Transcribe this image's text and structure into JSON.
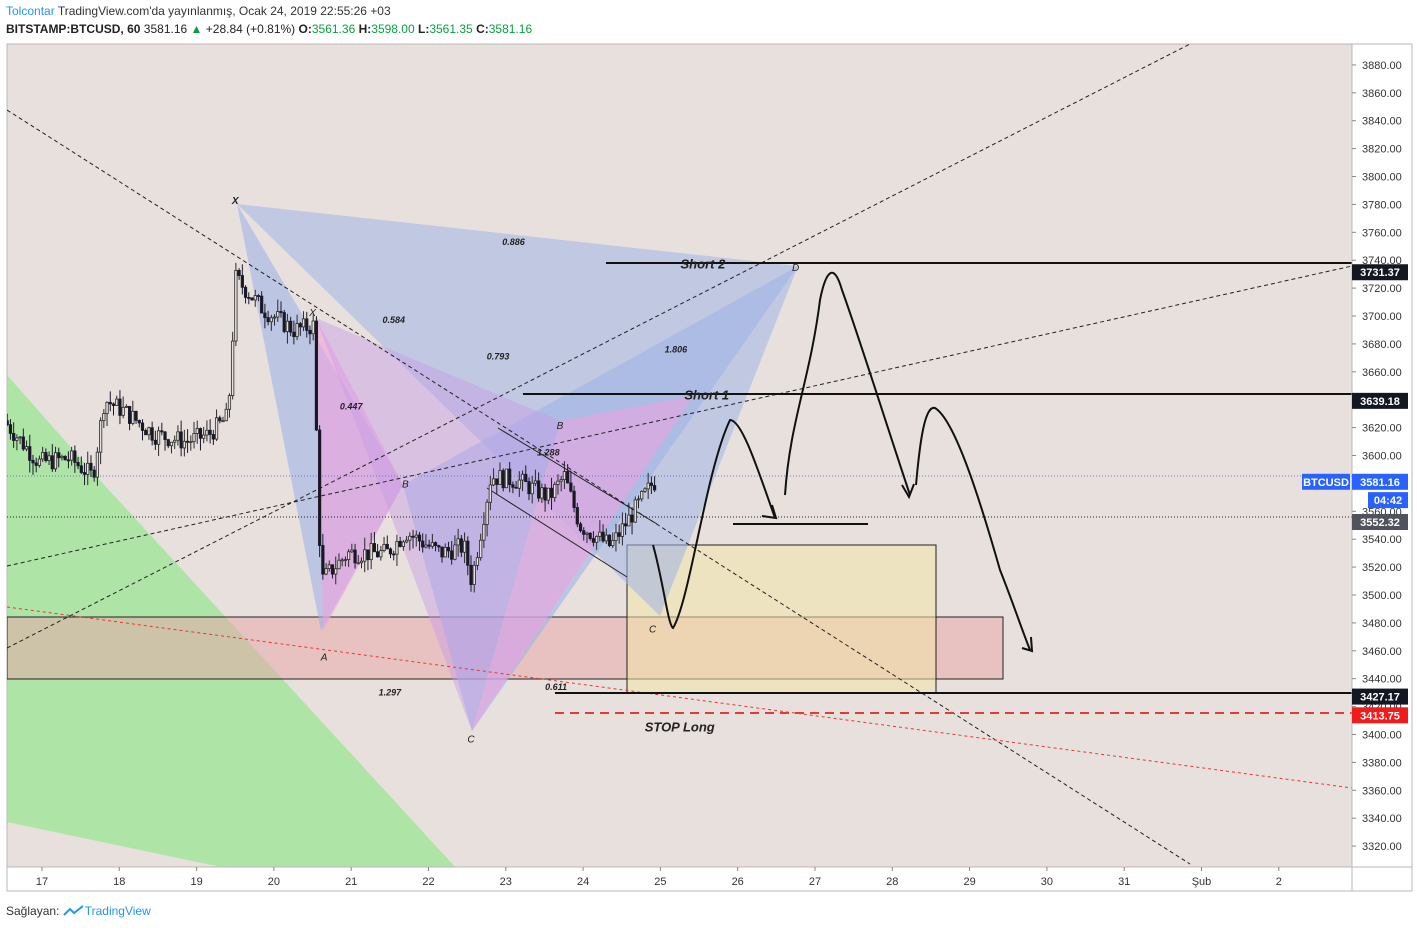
{
  "header": {
    "author": "Tolcontar",
    "published": "TradingView.com'da yayınlanmış, Ocak 24, 2019 22:55:26 +03",
    "symbol": "BITSTAMP:BTCUSD, 60",
    "last": "3581.16",
    "change_arrow": "▲",
    "change": "+28.84 (+0.81%)",
    "o_label": "O:",
    "o": "3561.36",
    "h_label": "H:",
    "h": "3598.00",
    "l_label": "L:",
    "l": "3561.35",
    "c_label": "C:",
    "c": "3581.16"
  },
  "footer": {
    "prefix": "Sağlayan:",
    "brand": "TradingView",
    "logo_icon": "tradingview-logo-icon"
  },
  "chart_data": {
    "type": "candlestick",
    "ylim": [
      3305,
      3895
    ],
    "y_ticks": [
      3320,
      3340,
      3360,
      3380,
      3400,
      3420,
      3440,
      3460,
      3480,
      3500,
      3520,
      3540,
      3560,
      3580,
      3600,
      3620,
      3640,
      3660,
      3680,
      3700,
      3720,
      3740,
      3760,
      3780,
      3800,
      3820,
      3840,
      3860,
      3880
    ],
    "x_ticks": [
      "17",
      "18",
      "19",
      "20",
      "21",
      "22",
      "23",
      "24",
      "25",
      "26",
      "27",
      "28",
      "29",
      "30",
      "31",
      "Şub",
      "2"
    ],
    "xlim_days": [
      16.55,
      33.95
    ],
    "price_tags": [
      {
        "label": "3731.37",
        "value": 3731.37,
        "kind": "black"
      },
      {
        "label": "3639.18",
        "value": 3639.18,
        "kind": "black"
      },
      {
        "label": "3581.16",
        "value": 3581.16,
        "kind": "blue"
      },
      {
        "label": "04:42",
        "value": 3568,
        "kind": "blue"
      },
      {
        "label": "3552.32",
        "value": 3552.32,
        "kind": "gray"
      },
      {
        "label": "3427.17",
        "value": 3427.17,
        "kind": "black"
      },
      {
        "label": "3413.75",
        "value": 3413.75,
        "kind": "red"
      }
    ],
    "symbol_badge": "BTCUSD",
    "annotations": [
      {
        "text": "Short 2",
        "x": 25.55,
        "y": 3737
      },
      {
        "text": "Short 1",
        "x": 25.6,
        "y": 3643
      },
      {
        "text": "STOP Long",
        "x": 25.25,
        "y": 3405
      }
    ],
    "pattern_labels": [
      {
        "text": "X",
        "x": 19.5,
        "y": 3783
      },
      {
        "text": "X",
        "x": 20.5,
        "y": 3703
      },
      {
        "text": "A",
        "x": 20.65,
        "y": 3456
      },
      {
        "text": "B",
        "x": 21.7,
        "y": 3580
      },
      {
        "text": "C",
        "x": 22.55,
        "y": 3397
      },
      {
        "text": "B",
        "x": 23.7,
        "y": 3622
      },
      {
        "text": "C",
        "x": 24.9,
        "y": 3476
      },
      {
        "text": "D",
        "x": 26.75,
        "y": 3735
      }
    ],
    "ratio_labels": [
      {
        "text": "0.886",
        "x": 23.1,
        "y": 3753
      },
      {
        "text": "0.584",
        "x": 21.55,
        "y": 3697
      },
      {
        "text": "0.793",
        "x": 22.9,
        "y": 3671
      },
      {
        "text": "0.447",
        "x": 21.0,
        "y": 3635
      },
      {
        "text": "1.806",
        "x": 25.2,
        "y": 3676
      },
      {
        "text": "1.288",
        "x": 23.55,
        "y": 3602
      },
      {
        "text": "1.297",
        "x": 21.5,
        "y": 3430
      },
      {
        "text": "0.611",
        "x": 23.65,
        "y": 3434
      }
    ],
    "ohlc_anchors": [
      {
        "x": 16.55,
        "y": 3625
      },
      {
        "x": 17.0,
        "y": 3595
      },
      {
        "x": 17.4,
        "y": 3598
      },
      {
        "x": 17.7,
        "y": 3585
      },
      {
        "x": 17.85,
        "y": 3640
      },
      {
        "x": 18.1,
        "y": 3632
      },
      {
        "x": 18.5,
        "y": 3615
      },
      {
        "x": 18.9,
        "y": 3610
      },
      {
        "x": 19.2,
        "y": 3615
      },
      {
        "x": 19.45,
        "y": 3628
      },
      {
        "x": 19.55,
        "y": 3727
      },
      {
        "x": 19.9,
        "y": 3705
      },
      {
        "x": 20.3,
        "y": 3690
      },
      {
        "x": 20.55,
        "y": 3693
      },
      {
        "x": 20.65,
        "y": 3510
      },
      {
        "x": 21.0,
        "y": 3530
      },
      {
        "x": 21.5,
        "y": 3530
      },
      {
        "x": 21.75,
        "y": 3545
      },
      {
        "x": 22.2,
        "y": 3530
      },
      {
        "x": 22.5,
        "y": 3535
      },
      {
        "x": 22.6,
        "y": 3510
      },
      {
        "x": 22.85,
        "y": 3585
      },
      {
        "x": 23.2,
        "y": 3582
      },
      {
        "x": 23.6,
        "y": 3570
      },
      {
        "x": 23.8,
        "y": 3585
      },
      {
        "x": 24.0,
        "y": 3550
      },
      {
        "x": 24.4,
        "y": 3535
      },
      {
        "x": 24.7,
        "y": 3560
      },
      {
        "x": 24.95,
        "y": 3581
      }
    ]
  }
}
